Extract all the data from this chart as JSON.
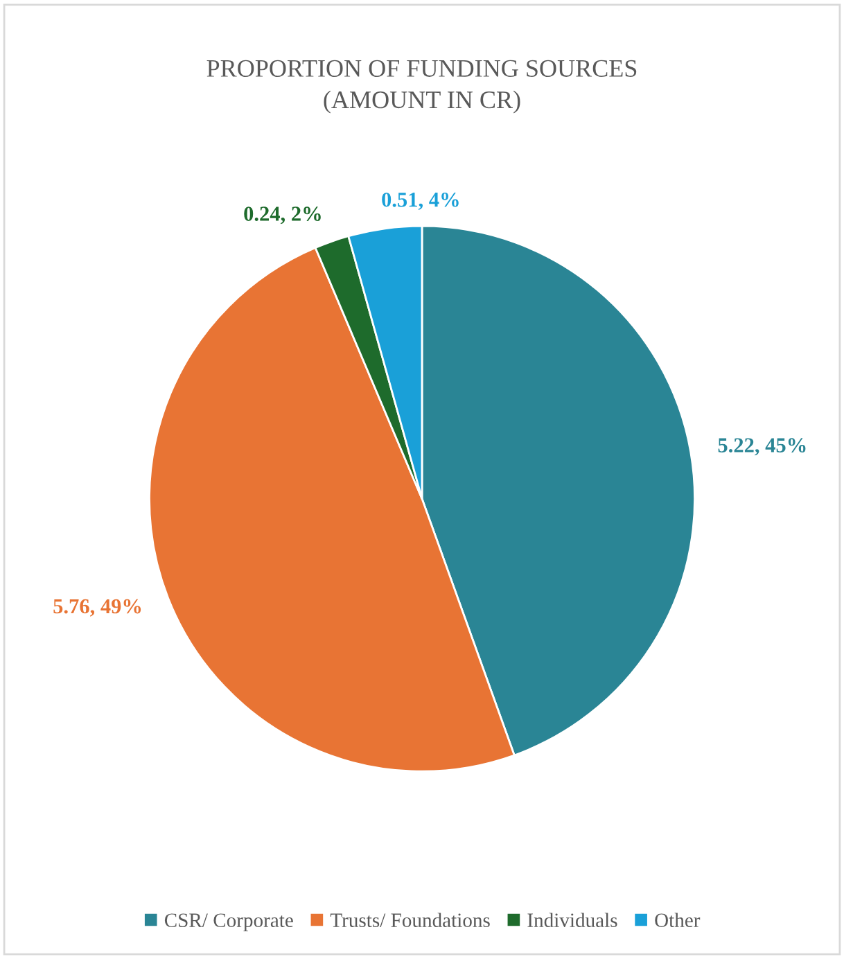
{
  "chart_data": {
    "type": "pie",
    "title": "PROPORTION OF FUNDING SOURCES\n(AMOUNT IN CR)",
    "categories": [
      "CSR/ Corporate",
      "Trusts/ Foundations",
      "Individuals",
      "Other"
    ],
    "values": [
      5.22,
      5.76,
      0.24,
      0.51
    ],
    "colors": [
      "#2a8595",
      "#e87434",
      "#1e6b2c",
      "#1aa0d8"
    ],
    "value_labels": [
      "5.22, 45%",
      "5.76, 49%",
      "0.24, 2%",
      "0.51, 4%"
    ],
    "legend": "bottom"
  }
}
